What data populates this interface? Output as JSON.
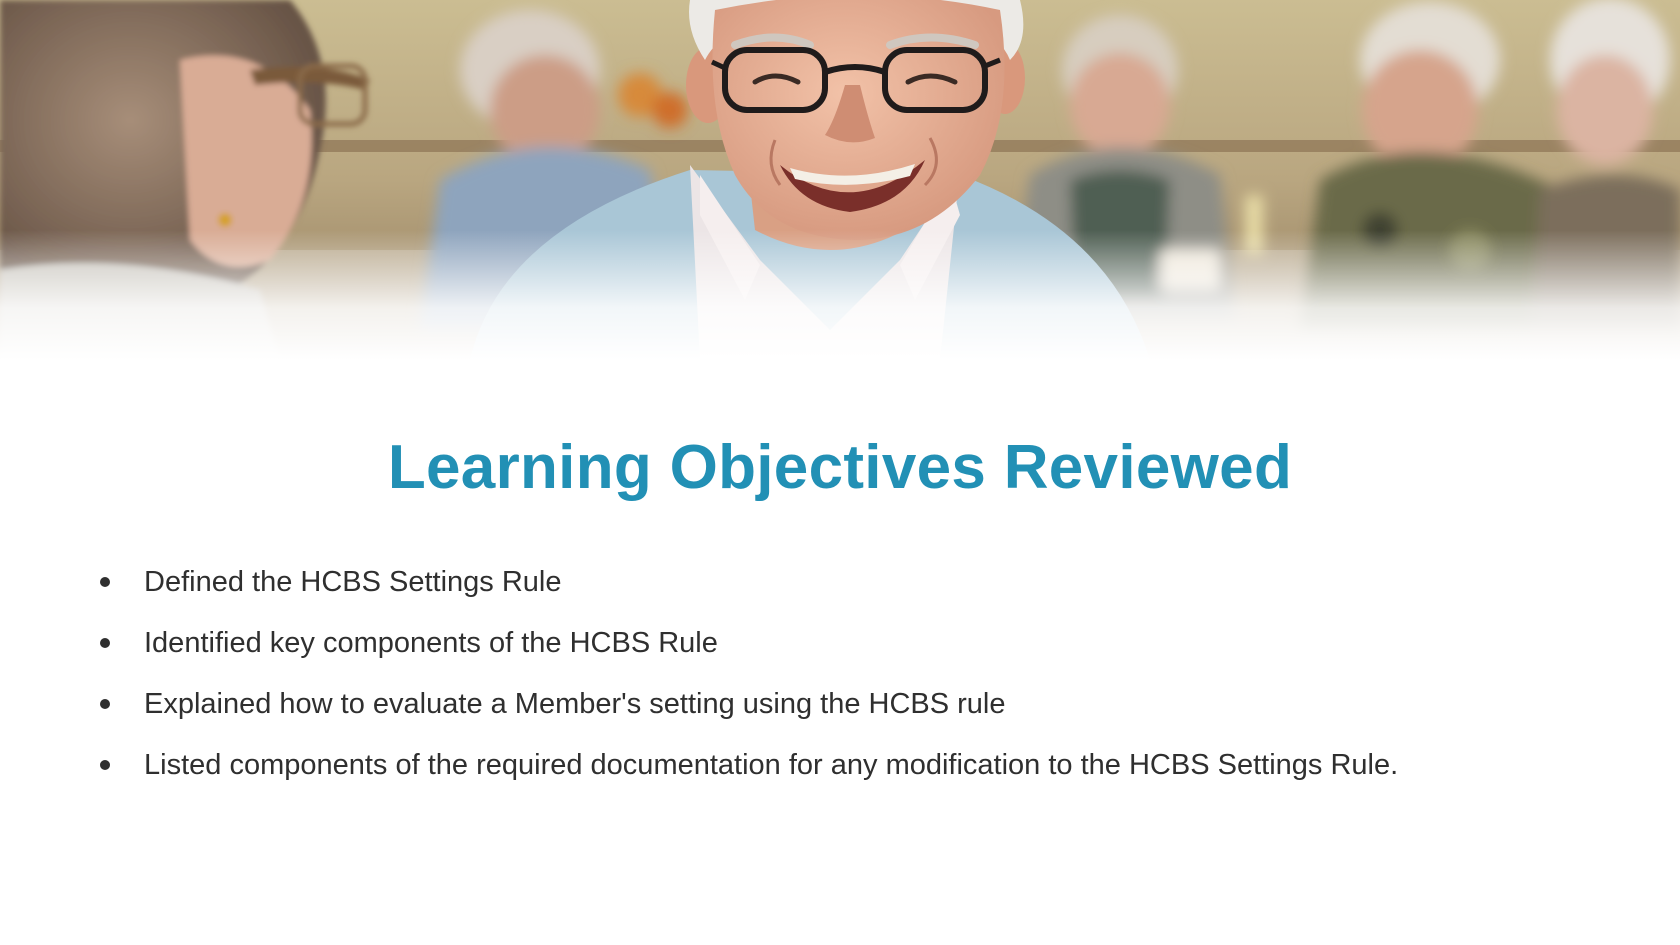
{
  "slide": {
    "hero_image": {
      "icon": "photo-of-smiling-elderly-man-at-dining-table"
    },
    "title": "Learning Objectives Reviewed",
    "title_color": "#2290b5",
    "objectives": [
      "Defined the HCBS Settings Rule",
      "Identified key components of the HCBS Rule",
      "Explained how to evaluate a Member's setting using the HCBS rule",
      "Listed components of the required documentation for any modification to the HCBS Settings Rule."
    ]
  }
}
